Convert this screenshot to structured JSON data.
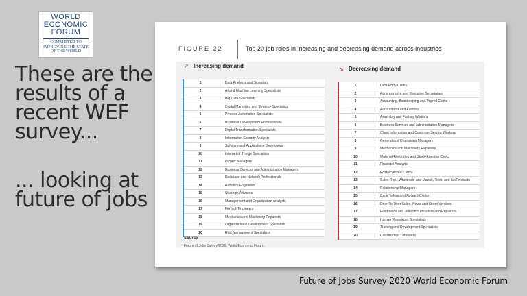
{
  "logo": {
    "line1": "WORLD",
    "line2": "ECONOMIC",
    "line3": "FORUM",
    "tag1": "COMMITTED TO",
    "tag2": "IMPROVING THE STATE",
    "tag3": "OF THE WORLD"
  },
  "left_text": {
    "block1": [
      "These are the",
      "results of a",
      "recent WEF",
      "survey..."
    ],
    "block2": [
      "... looking at",
      "future of jobs"
    ]
  },
  "figure": {
    "label": "FIGURE 22",
    "title": "Top 20 job roles in increasing and decreasing demand across industries",
    "increasing": {
      "header": "Increasing demand",
      "rows": [
        {
          "rank": "1",
          "name": "Data Analysts and Scientists"
        },
        {
          "rank": "2",
          "name": "AI and Machine Learning Specialists"
        },
        {
          "rank": "3",
          "name": "Big Data Specialists"
        },
        {
          "rank": "4",
          "name": "Digital Marketing and Strategy Specialists"
        },
        {
          "rank": "5",
          "name": "Process Automation Specialists"
        },
        {
          "rank": "6",
          "name": "Business Development Professionals"
        },
        {
          "rank": "7",
          "name": "Digital Transformation Specialists"
        },
        {
          "rank": "8",
          "name": "Information Security Analysts"
        },
        {
          "rank": "9",
          "name": "Software and Applications Developers"
        },
        {
          "rank": "10",
          "name": "Internet of Things Specialists"
        },
        {
          "rank": "11",
          "name": "Project Managers"
        },
        {
          "rank": "12",
          "name": "Business Services and Administration Managers"
        },
        {
          "rank": "13",
          "name": "Database and Network Professionals"
        },
        {
          "rank": "14",
          "name": "Robotics Engineers"
        },
        {
          "rank": "15",
          "name": "Strategic Advisors"
        },
        {
          "rank": "16",
          "name": "Management and Organization Analysts"
        },
        {
          "rank": "17",
          "name": "FinTech Engineers"
        },
        {
          "rank": "18",
          "name": "Mechanics and Machinery Repairers"
        },
        {
          "rank": "19",
          "name": "Organizational Development Specialists"
        },
        {
          "rank": "20",
          "name": "Risk Management Specialists"
        }
      ]
    },
    "decreasing": {
      "header": "Decreasing demand",
      "rows": [
        {
          "rank": "1",
          "name": "Data Entry Clerks"
        },
        {
          "rank": "2",
          "name": "Administrative and Executive Secretaries"
        },
        {
          "rank": "3",
          "name": "Accounting, Bookkeeping and Payroll Clerks"
        },
        {
          "rank": "4",
          "name": "Accountants and Auditors"
        },
        {
          "rank": "5",
          "name": "Assembly and Factory Workers"
        },
        {
          "rank": "6",
          "name": "Business Services and Administration Managers"
        },
        {
          "rank": "7",
          "name": "Client Information and Customer Service Workers"
        },
        {
          "rank": "8",
          "name": "General and Operations Managers"
        },
        {
          "rank": "9",
          "name": "Mechanics and Machinery Repairers"
        },
        {
          "rank": "10",
          "name": "Material-Recording and Stock-Keeping Clerks"
        },
        {
          "rank": "11",
          "name": "Financial Analysts"
        },
        {
          "rank": "12",
          "name": "Postal Service Clerks"
        },
        {
          "rank": "13",
          "name": "Sales Rep., Wholesale and Manuf., Tech. and Sci.Products"
        },
        {
          "rank": "14",
          "name": "Relationship Managers"
        },
        {
          "rank": "15",
          "name": "Bank Tellers and Related Clerks"
        },
        {
          "rank": "16",
          "name": "Door-To-Door Sales, News and Street Vendors"
        },
        {
          "rank": "17",
          "name": "Electronics and Telecoms Installers and Repairers"
        },
        {
          "rank": "18",
          "name": "Human Resources Specialists"
        },
        {
          "rank": "19",
          "name": "Training and Development Specialists"
        },
        {
          "rank": "20",
          "name": "Construction Labourers"
        }
      ]
    },
    "source_heading": "Source",
    "source_text": "Future of Jobs Survey 2020, World Economic Forum."
  },
  "caption": "Future of Jobs Survey  2020 World Economic Forum"
}
